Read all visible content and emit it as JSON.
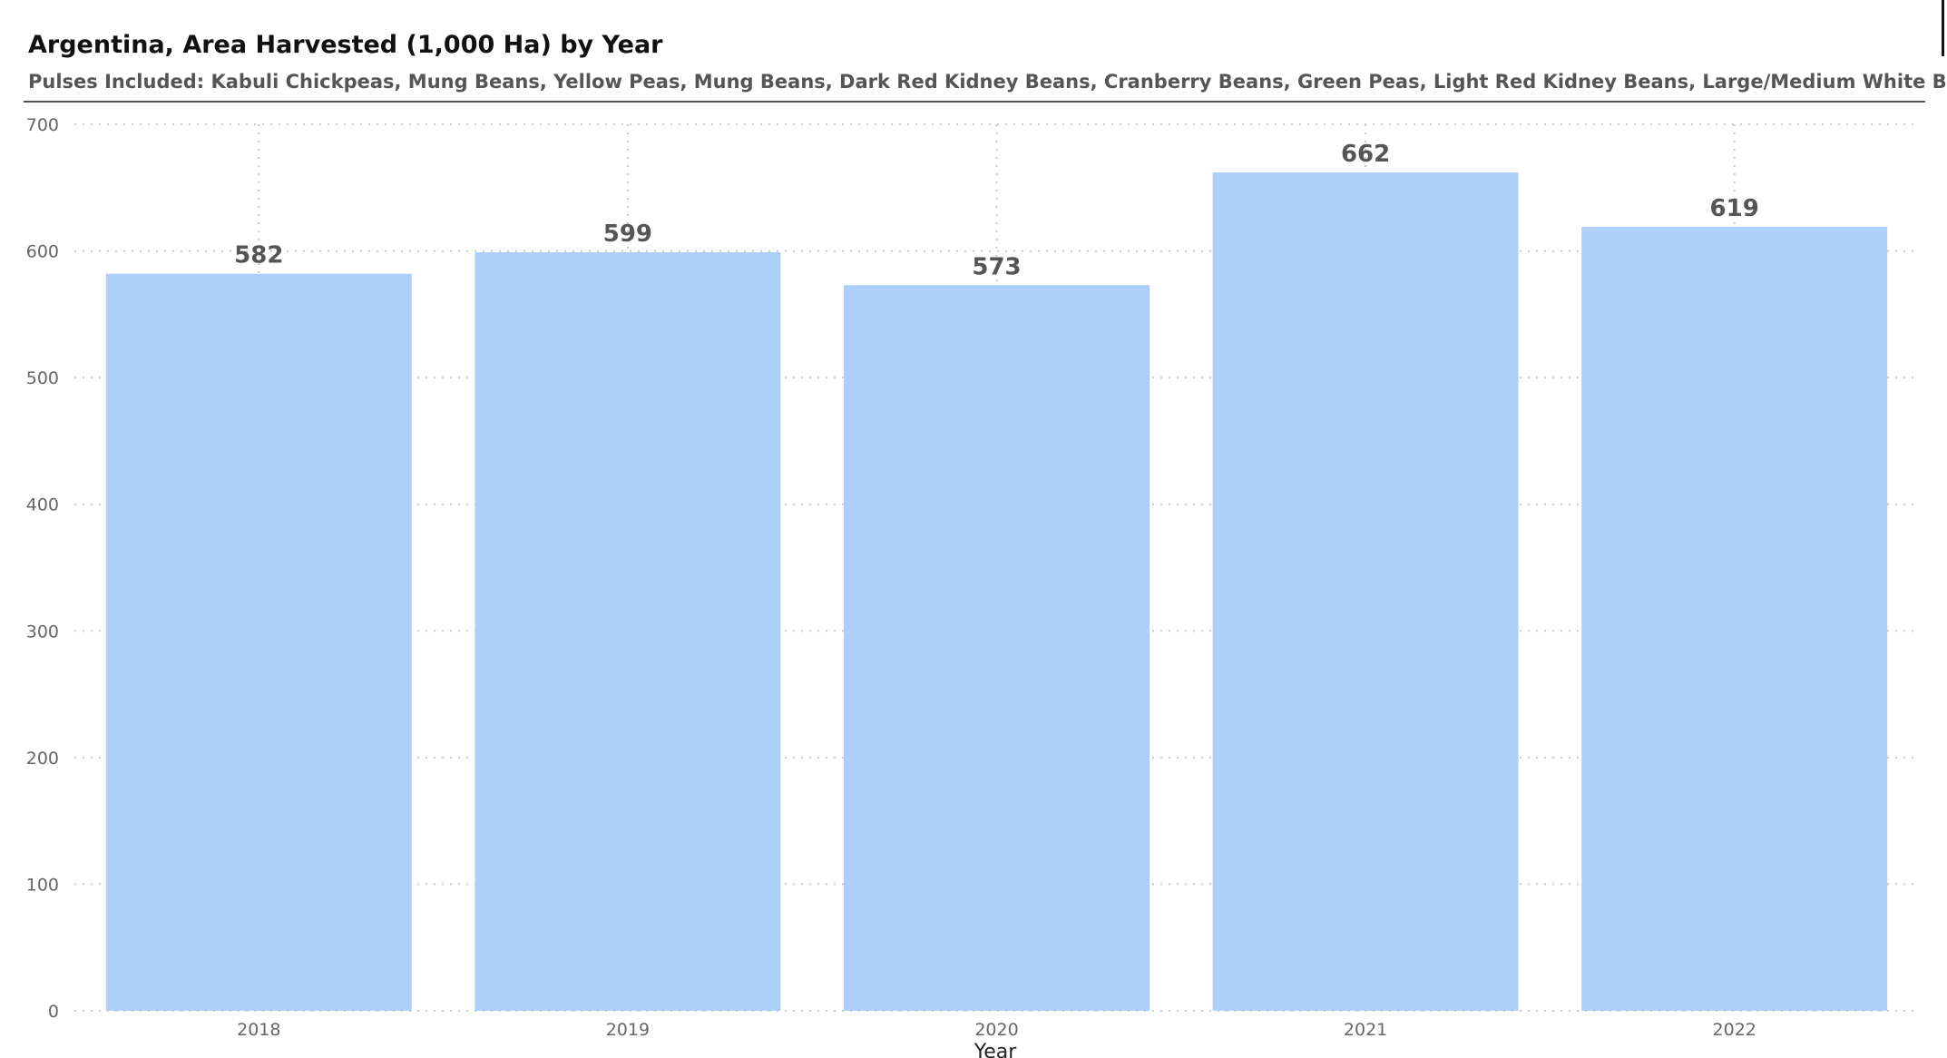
{
  "chart_data": {
    "type": "bar",
    "title": "Argentina, Area Harvested (1,000 Ha) by Year",
    "subtitle": "Pulses Included: Kabuli Chickpeas, Mung Beans, Yellow Peas, Mung Beans, Dark Red Kidney Beans, Cranberry Beans, Green Peas, Light Red Kidney Beans, Large/Medium White Beans",
    "xlabel": "Year",
    "ylabel": "",
    "categories": [
      "2018",
      "2019",
      "2020",
      "2021",
      "2022"
    ],
    "values": [
      582,
      599,
      573,
      662,
      619
    ],
    "data_labels": [
      "582",
      "599",
      "573",
      "662",
      "619"
    ],
    "ylim": [
      0,
      700
    ],
    "yticks": [
      "0",
      "100",
      "200",
      "300",
      "400",
      "500",
      "600",
      "700"
    ],
    "grid": true,
    "legend": "none",
    "bar_color": "#adcff9",
    "gridline_color": "#c8c8c8"
  }
}
